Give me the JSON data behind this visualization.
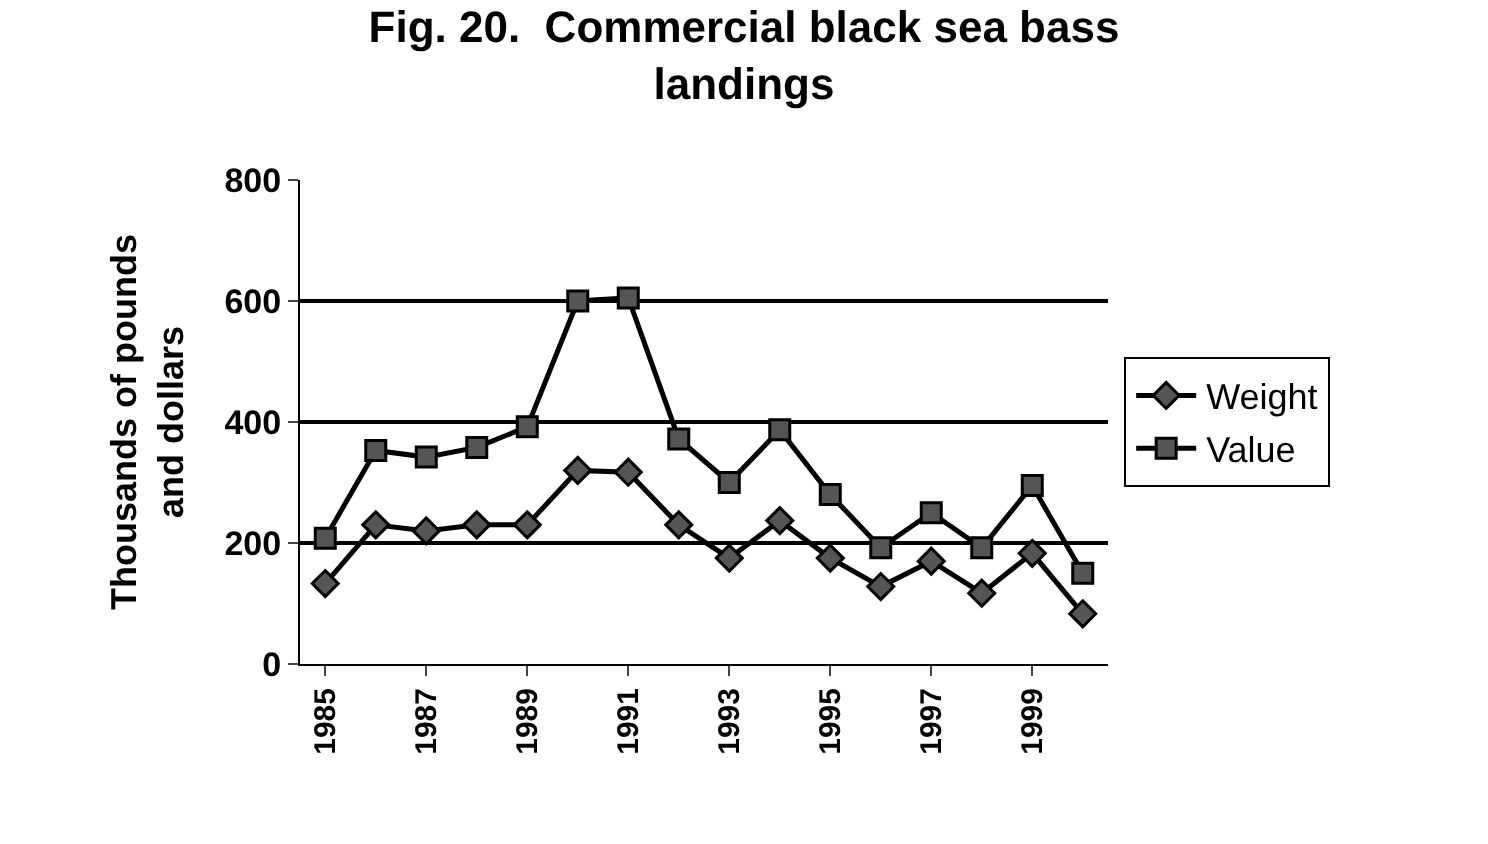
{
  "chart_data": {
    "type": "line",
    "title": "Fig. 20.  Commercial black sea bass\nlandings",
    "ylabel": "Thousands of pounds\nand dollars",
    "categories": [
      "1985",
      null,
      "1987",
      null,
      "1989",
      null,
      "1991",
      null,
      "1993",
      null,
      "1995",
      null,
      "1997",
      null,
      "1999",
      null
    ],
    "series": [
      {
        "name": "Weight",
        "color": "#000000",
        "marker": "diamond",
        "values": [
          133,
          230,
          220,
          230,
          230,
          320,
          317,
          230,
          175,
          237,
          175,
          128,
          170,
          117,
          183,
          83
        ]
      },
      {
        "name": "Value",
        "color": "#000000",
        "marker": "square",
        "values": [
          208,
          353,
          342,
          358,
          392,
          600,
          605,
          372,
          300,
          387,
          280,
          192,
          250,
          192,
          295,
          150
        ]
      }
    ],
    "ylim": [
      0,
      800
    ],
    "yticks": [
      0,
      200,
      400,
      600,
      800
    ],
    "grid": "y",
    "legend": "right",
    "line_style": "solid"
  }
}
